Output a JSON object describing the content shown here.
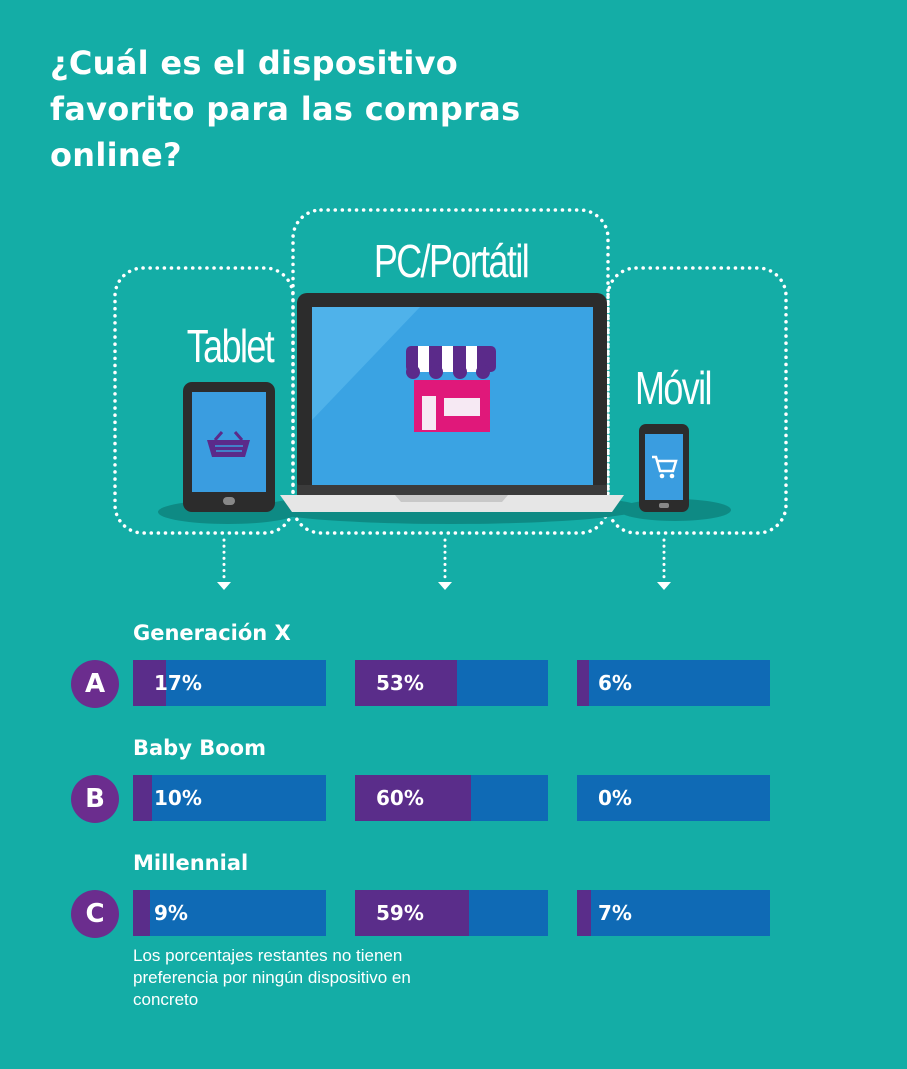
{
  "title": "¿Cuál es el dispositivo favorito para las compras online?",
  "devices": {
    "tablet_label": "Tablet",
    "pc_label": "PC/Portátil",
    "mobile_label": "Móvil",
    "tablet_icon": "shopping-basket-icon",
    "pc_icon": "storefront-icon",
    "mobile_icon": "shopping-cart-icon"
  },
  "colors": {
    "background": "#14ada6",
    "bar": "#0f6ab5",
    "fill": "#5a2d8a",
    "badge": "#6b2d8e",
    "store": "#e0187a"
  },
  "chart_data": {
    "type": "bar",
    "categories": [
      "Tablet",
      "PC/Portátil",
      "Móvil"
    ],
    "series": [
      {
        "name": "Generación X",
        "letter": "A",
        "values": [
          17,
          53,
          6
        ],
        "labels": [
          "17%",
          "53%",
          "6%"
        ]
      },
      {
        "name": "Baby Boom",
        "letter": "B",
        "values": [
          10,
          60,
          0
        ],
        "labels": [
          "10%",
          "60%",
          "0%"
        ]
      },
      {
        "name": "Millennial",
        "letter": "C",
        "values": [
          9,
          59,
          7
        ],
        "labels": [
          "9%",
          "59%",
          "7%"
        ]
      }
    ],
    "ylim": [
      0,
      100
    ]
  },
  "footnote": "Los porcentajes restantes no tienen preferencia por ningún dispositivo en concreto"
}
